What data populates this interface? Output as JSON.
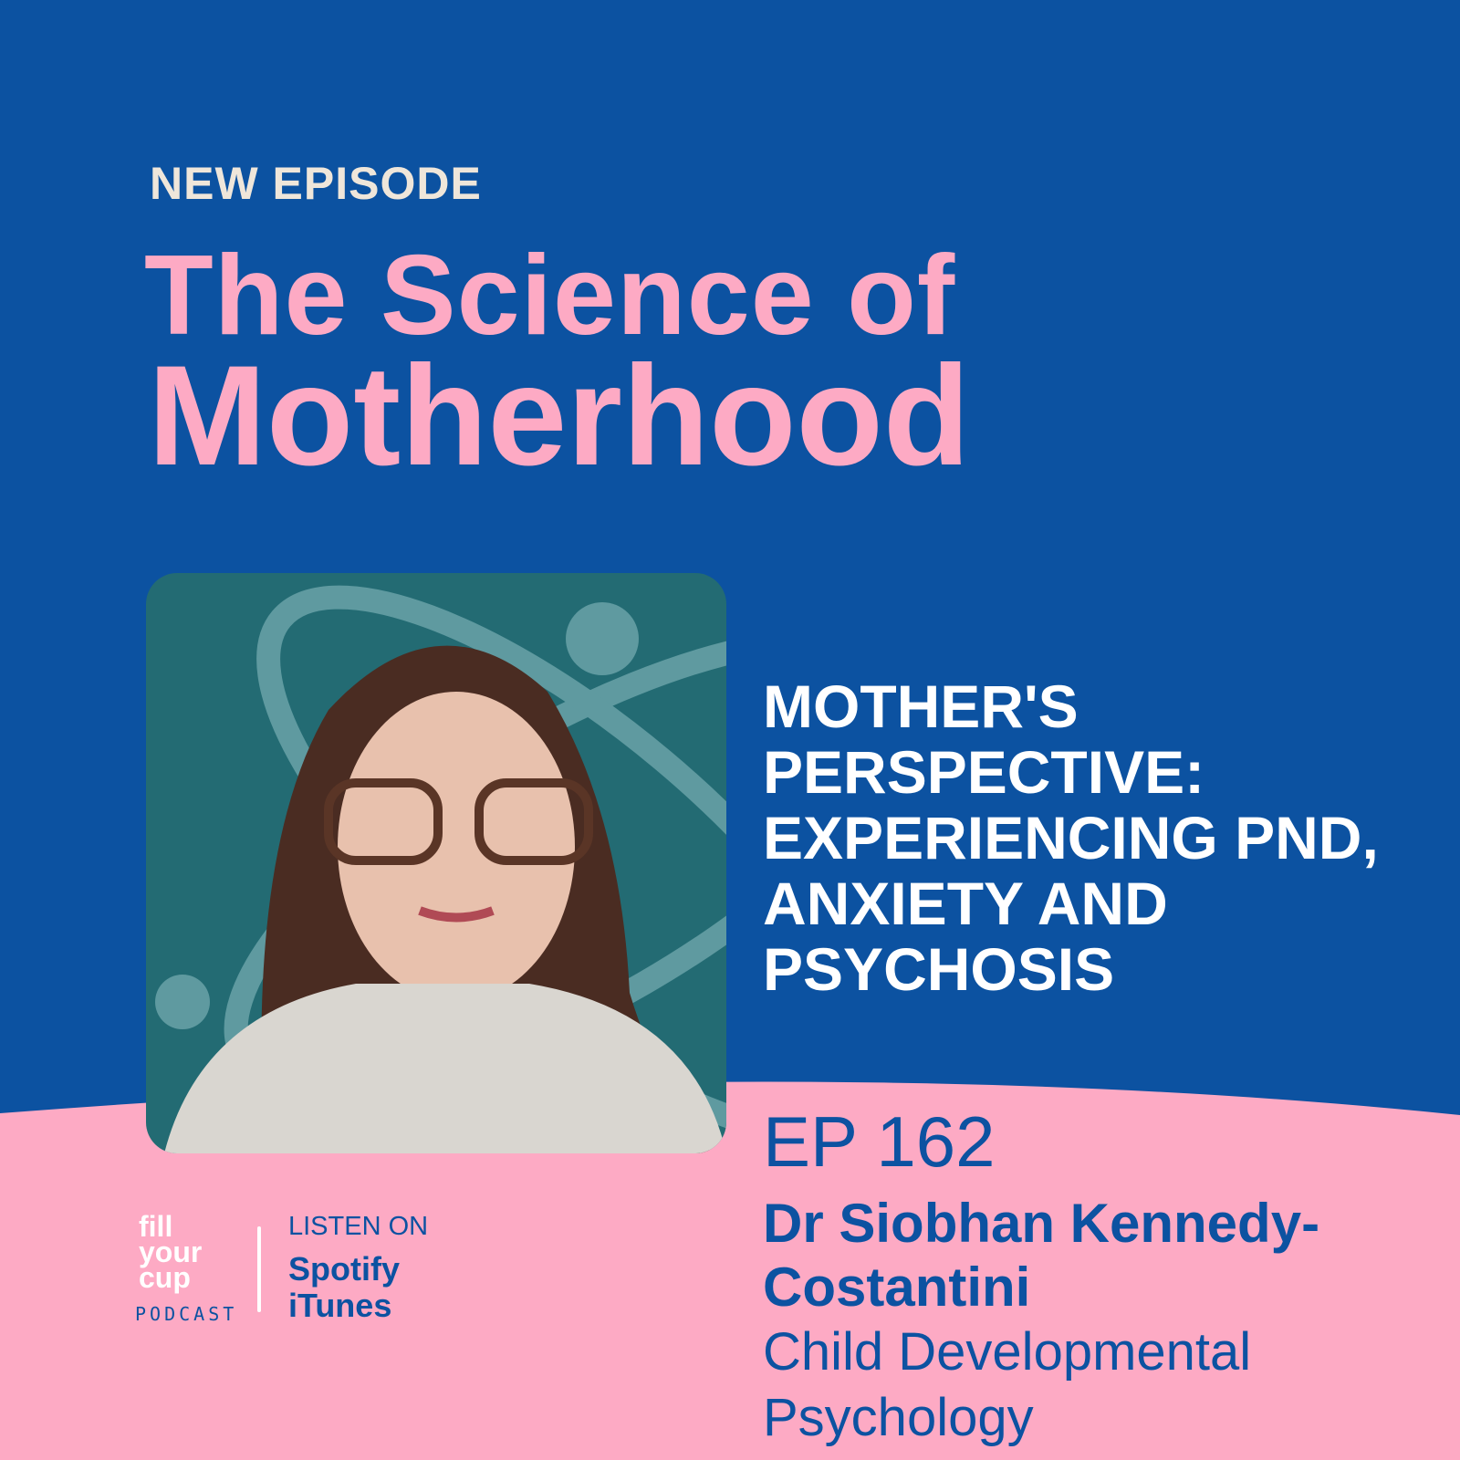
{
  "colors": {
    "background": "#0c52a1",
    "accent_pink": "#fdaac4",
    "kicker": "#efe6da",
    "photo_bg": "#236b73"
  },
  "kicker": "NEW EPISODE",
  "title": {
    "line1": "The Science of",
    "line2": "Motherhood"
  },
  "topic": "MOTHER'S PERSPECTIVE: EXPERIENCING PND, ANXIETY AND PSYCHOSIS",
  "episode": "EP 162",
  "guest": "Dr Siobhan Kennedy-Costantini",
  "field": "Child Developmental Psychology",
  "logo": {
    "text": "fill your cup",
    "subtitle": "PODCAST"
  },
  "listen": {
    "label": "LISTEN ON",
    "platforms": [
      "Spotify",
      "iTunes"
    ]
  },
  "photo": {
    "icon": "atom-icon"
  }
}
